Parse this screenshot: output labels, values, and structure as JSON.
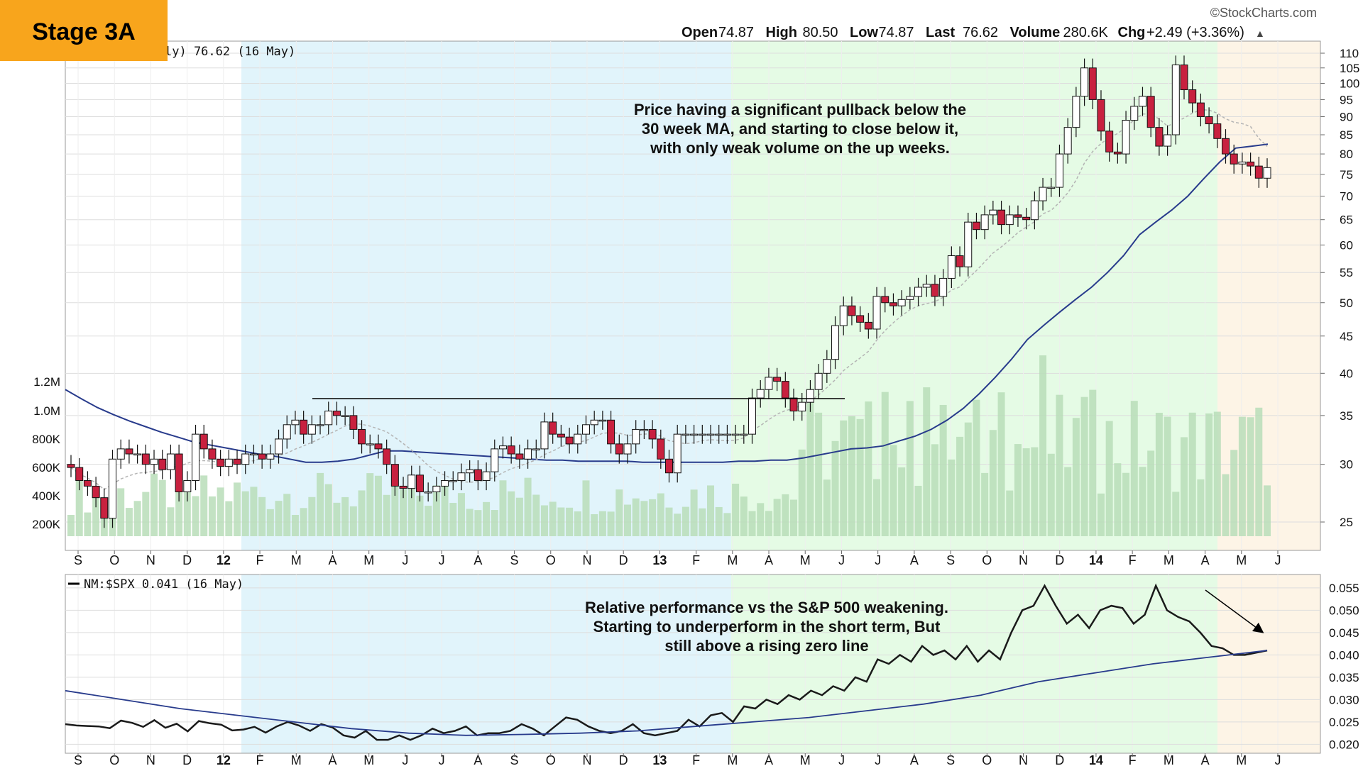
{
  "badge": {
    "label": "Stage 3A",
    "color": "#f8a51c"
  },
  "watermark": "©StockCharts.com",
  "quote": [
    {
      "k": "Open",
      "v": "74.87"
    },
    {
      "k": "High",
      "v": "80.50"
    },
    {
      "k": "Low",
      "v": "74.87"
    },
    {
      "k": "Last",
      "v": "76.62"
    },
    {
      "k": "Volume",
      "v": "280.6K"
    },
    {
      "k": "Chg",
      "v": "+2.49 (+3.36%)"
    }
  ],
  "quote_arrow": "▲",
  "price_legend": "ly) 76.62 (16 May)",
  "rs_legend": "NM:$SPX 0.041 (16 May)",
  "annotations": {
    "price": [
      "Price having a significant pullback below the",
      "30 week MA, and starting to close below it,",
      "with only weak volume on the up weeks."
    ],
    "rs": [
      "Relative performance vs the S&P 500 weakening.",
      "Starting to underperform in the short term, But",
      "still above a rising zero line"
    ]
  },
  "colors": {
    "stage1_zone": "#e1f4fb",
    "stage2_zone": "#e5fbe5",
    "stage3_zone": "#fdf4e6",
    "up_candle": "#ffffff",
    "down_candle": "#c8213f",
    "ma30": "#283b8c",
    "ma10": "#b4b4b4",
    "volume": "#b9ddb9",
    "rs_line": "#1a1a1a"
  },
  "chart_data": [
    {
      "type": "candlestick",
      "period": "weekly",
      "x_axis_labels": [
        "S",
        "O",
        "N",
        "D",
        "12",
        "F",
        "M",
        "A",
        "M",
        "J",
        "J",
        "A",
        "S",
        "O",
        "N",
        "D",
        "13",
        "F",
        "M",
        "A",
        "M",
        "J",
        "J",
        "A",
        "S",
        "O",
        "N",
        "D",
        "14",
        "F",
        "M",
        "A",
        "M",
        "J"
      ],
      "y_scale": "log",
      "y_ticks": [
        25,
        30,
        35,
        40,
        45,
        50,
        55,
        60,
        65,
        70,
        75,
        80,
        85,
        90,
        95,
        100,
        105,
        110
      ],
      "volume_ticks": [
        "200K",
        "400K",
        "600K",
        "800K",
        "1.0M",
        "1.2M"
      ],
      "resistance_level": 37,
      "series": [
        {
          "name": "Close",
          "values": [
            29.7,
            28.5,
            28,
            27,
            25.3,
            30.5,
            31.5,
            31,
            31,
            30,
            30.5,
            29.5,
            31,
            27.5,
            28.5,
            33,
            31.5,
            30.5,
            29.8,
            30.5,
            30,
            31,
            31,
            30.5,
            31,
            32.5,
            34,
            34.5,
            33,
            34,
            34,
            35.5,
            35,
            35,
            33.5,
            32,
            32,
            31.5,
            30,
            28,
            27.8,
            29,
            27.5,
            27.5,
            28,
            28.5,
            28.5,
            29.2,
            29.5,
            28.5,
            29.3,
            31.5,
            31.8,
            31,
            30.5,
            31.5,
            31.5,
            34.3,
            33,
            32.7,
            32,
            33,
            34,
            34.5,
            34.5,
            32,
            31,
            32,
            33.5,
            33.5,
            32.5,
            30.5,
            29.2,
            33,
            33,
            33,
            33,
            33,
            33,
            33,
            33,
            33,
            37,
            38,
            39.5,
            39,
            37,
            35.5,
            36.5,
            38,
            40,
            41.8,
            46.5,
            49.5,
            48,
            47,
            46,
            51,
            50,
            49.5,
            50.5,
            51,
            52.5,
            53,
            51,
            54,
            58,
            56,
            64.5,
            63,
            66,
            67,
            64,
            66,
            65.5,
            65,
            69,
            72,
            72,
            80,
            87,
            96,
            105,
            95,
            86,
            80.5,
            80,
            89,
            93,
            96,
            87,
            82,
            85,
            106,
            98,
            94,
            90,
            88,
            84,
            80,
            77.5,
            78,
            77,
            74.1,
            76.62
          ]
        },
        {
          "name": "30 Week MA",
          "values": [
            38,
            36.9,
            35.9,
            35.1,
            34.4,
            33.8,
            33.2,
            32.7,
            32.2,
            31.9,
            31.6,
            31.3,
            31,
            30.8,
            30.5,
            30.2,
            30.2,
            30.3,
            30.5,
            30.9,
            31.3,
            31.3,
            31.2,
            31.1,
            31,
            30.9,
            30.8,
            30.7,
            30.6,
            30.5,
            30.4,
            30.4,
            30.3,
            30.3,
            30.3,
            30.3,
            30.2,
            30.2,
            30.2,
            30.2,
            30.2,
            30.2,
            30.3,
            30.3,
            30.4,
            30.4,
            30.6,
            30.9,
            31.2,
            31.5,
            31.6,
            31.8,
            32.3,
            32.8,
            33.5,
            34.5,
            35.8,
            37.5,
            39.5,
            41.8,
            44.5,
            46.5,
            48.5,
            50.5,
            52.5,
            55,
            58,
            62,
            64.5,
            67,
            70,
            74,
            78,
            81.5,
            82,
            82.5
          ]
        },
        {
          "name": "RS Line",
          "values": [
            0.0245,
            0.0242,
            0.0241,
            0.024,
            0.0236,
            0.0253,
            0.0248,
            0.0239,
            0.0254,
            0.0237,
            0.0246,
            0.0229,
            0.0252,
            0.0247,
            0.0244,
            0.0231,
            0.0233,
            0.0239,
            0.0226,
            0.024,
            0.025,
            0.0242,
            0.023,
            0.0245,
            0.0238,
            0.022,
            0.0215,
            0.023,
            0.021,
            0.021,
            0.022,
            0.021,
            0.022,
            0.0235,
            0.0225,
            0.023,
            0.024,
            0.022,
            0.0225,
            0.0225,
            0.023,
            0.0245,
            0.0235,
            0.022,
            0.024,
            0.026,
            0.0255,
            0.024,
            0.023,
            0.0225,
            0.023,
            0.0245,
            0.0225,
            0.022,
            0.0225,
            0.023,
            0.0255,
            0.024,
            0.0265,
            0.027,
            0.025,
            0.0285,
            0.028,
            0.03,
            0.029,
            0.031,
            0.03,
            0.032,
            0.031,
            0.033,
            0.032,
            0.035,
            0.034,
            0.039,
            0.038,
            0.04,
            0.0385,
            0.042,
            0.04,
            0.041,
            0.039,
            0.042,
            0.0385,
            0.041,
            0.039,
            0.045,
            0.05,
            0.051,
            0.0555,
            0.051,
            0.047,
            0.049,
            0.046,
            0.05,
            0.051,
            0.0505,
            0.047,
            0.049,
            0.0555,
            0.05,
            0.0485,
            0.0475,
            0.045,
            0.042,
            0.0415,
            0.04,
            0.04,
            0.0405,
            0.041
          ]
        }
      ]
    },
    {
      "type": "line",
      "title": "NM:$SPX 0.041 (16 May)",
      "y_ticks": [
        0.02,
        0.025,
        0.03,
        0.035,
        0.04,
        0.045,
        0.05,
        0.055
      ],
      "ylim": [
        0.018,
        0.058
      ]
    }
  ]
}
